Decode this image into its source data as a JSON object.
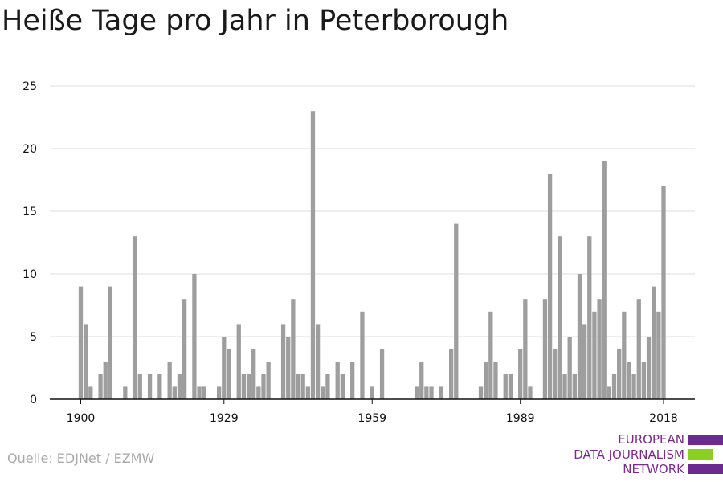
{
  "header": {
    "title": "Heiße Tage pro Jahr in Peterborough"
  },
  "footer": {
    "source": "Quelle: EDJNet / EZMW"
  },
  "logo": {
    "lines": [
      "EUROPEAN",
      "DATA JOURNALISM",
      "NETWORK"
    ],
    "colors": {
      "text": "#7b2a8c",
      "purple": "#6b2a8f",
      "green": "#8ccf1e"
    }
  },
  "chart_data": {
    "type": "bar",
    "title": "Heiße Tage pro Jahr in Peterborough",
    "xlabel": "",
    "ylabel": "",
    "x": [
      1900,
      1901,
      1902,
      1903,
      1904,
      1905,
      1906,
      1907,
      1908,
      1909,
      1910,
      1911,
      1912,
      1913,
      1914,
      1915,
      1916,
      1917,
      1918,
      1919,
      1920,
      1921,
      1922,
      1923,
      1924,
      1925,
      1926,
      1927,
      1928,
      1929,
      1930,
      1931,
      1932,
      1933,
      1934,
      1935,
      1936,
      1937,
      1938,
      1939,
      1940,
      1941,
      1942,
      1943,
      1944,
      1945,
      1946,
      1947,
      1948,
      1949,
      1950,
      1951,
      1952,
      1953,
      1954,
      1955,
      1956,
      1957,
      1958,
      1959,
      1960,
      1961,
      1962,
      1963,
      1964,
      1965,
      1966,
      1967,
      1968,
      1969,
      1970,
      1971,
      1972,
      1973,
      1974,
      1975,
      1976,
      1977,
      1978,
      1979,
      1980,
      1981,
      1982,
      1983,
      1984,
      1985,
      1986,
      1987,
      1988,
      1989,
      1990,
      1991,
      1992,
      1993,
      1994,
      1995,
      1996,
      1997,
      1998,
      1999,
      2000,
      2001,
      2002,
      2003,
      2004,
      2005,
      2006,
      2007,
      2008,
      2009,
      2010,
      2011,
      2012,
      2013,
      2014,
      2015,
      2016,
      2017,
      2018
    ],
    "values": [
      9,
      6,
      1,
      0,
      2,
      3,
      9,
      0,
      0,
      1,
      0,
      13,
      2,
      0,
      2,
      0,
      2,
      0,
      3,
      1,
      2,
      8,
      0,
      10,
      1,
      1,
      0,
      0,
      1,
      5,
      4,
      0,
      6,
      2,
      2,
      4,
      1,
      2,
      3,
      0,
      0,
      6,
      5,
      8,
      2,
      2,
      1,
      23,
      6,
      1,
      2,
      0,
      3,
      2,
      0,
      3,
      0,
      7,
      0,
      1,
      0,
      4,
      0,
      0,
      0,
      0,
      0,
      0,
      1,
      3,
      1,
      1,
      0,
      1,
      0,
      4,
      14,
      0,
      0,
      0,
      0,
      1,
      3,
      7,
      3,
      0,
      2,
      2,
      0,
      4,
      8,
      1,
      0,
      0,
      8,
      18,
      4,
      13,
      2,
      5,
      2,
      10,
      6,
      13,
      7,
      8,
      19,
      1,
      2,
      4,
      7,
      3,
      2,
      8,
      3,
      5,
      9,
      7,
      17
    ],
    "xticks": [
      1900,
      1929,
      1959,
      1989,
      2018
    ],
    "xlim": [
      1900,
      2018
    ],
    "ylim": [
      0,
      25
    ],
    "yticks": [
      0,
      5,
      10,
      15,
      20,
      25
    ],
    "grid": true,
    "colors": {
      "bar": "#9e9e9e",
      "grid": "#dddddd",
      "axis": "#111111"
    }
  }
}
